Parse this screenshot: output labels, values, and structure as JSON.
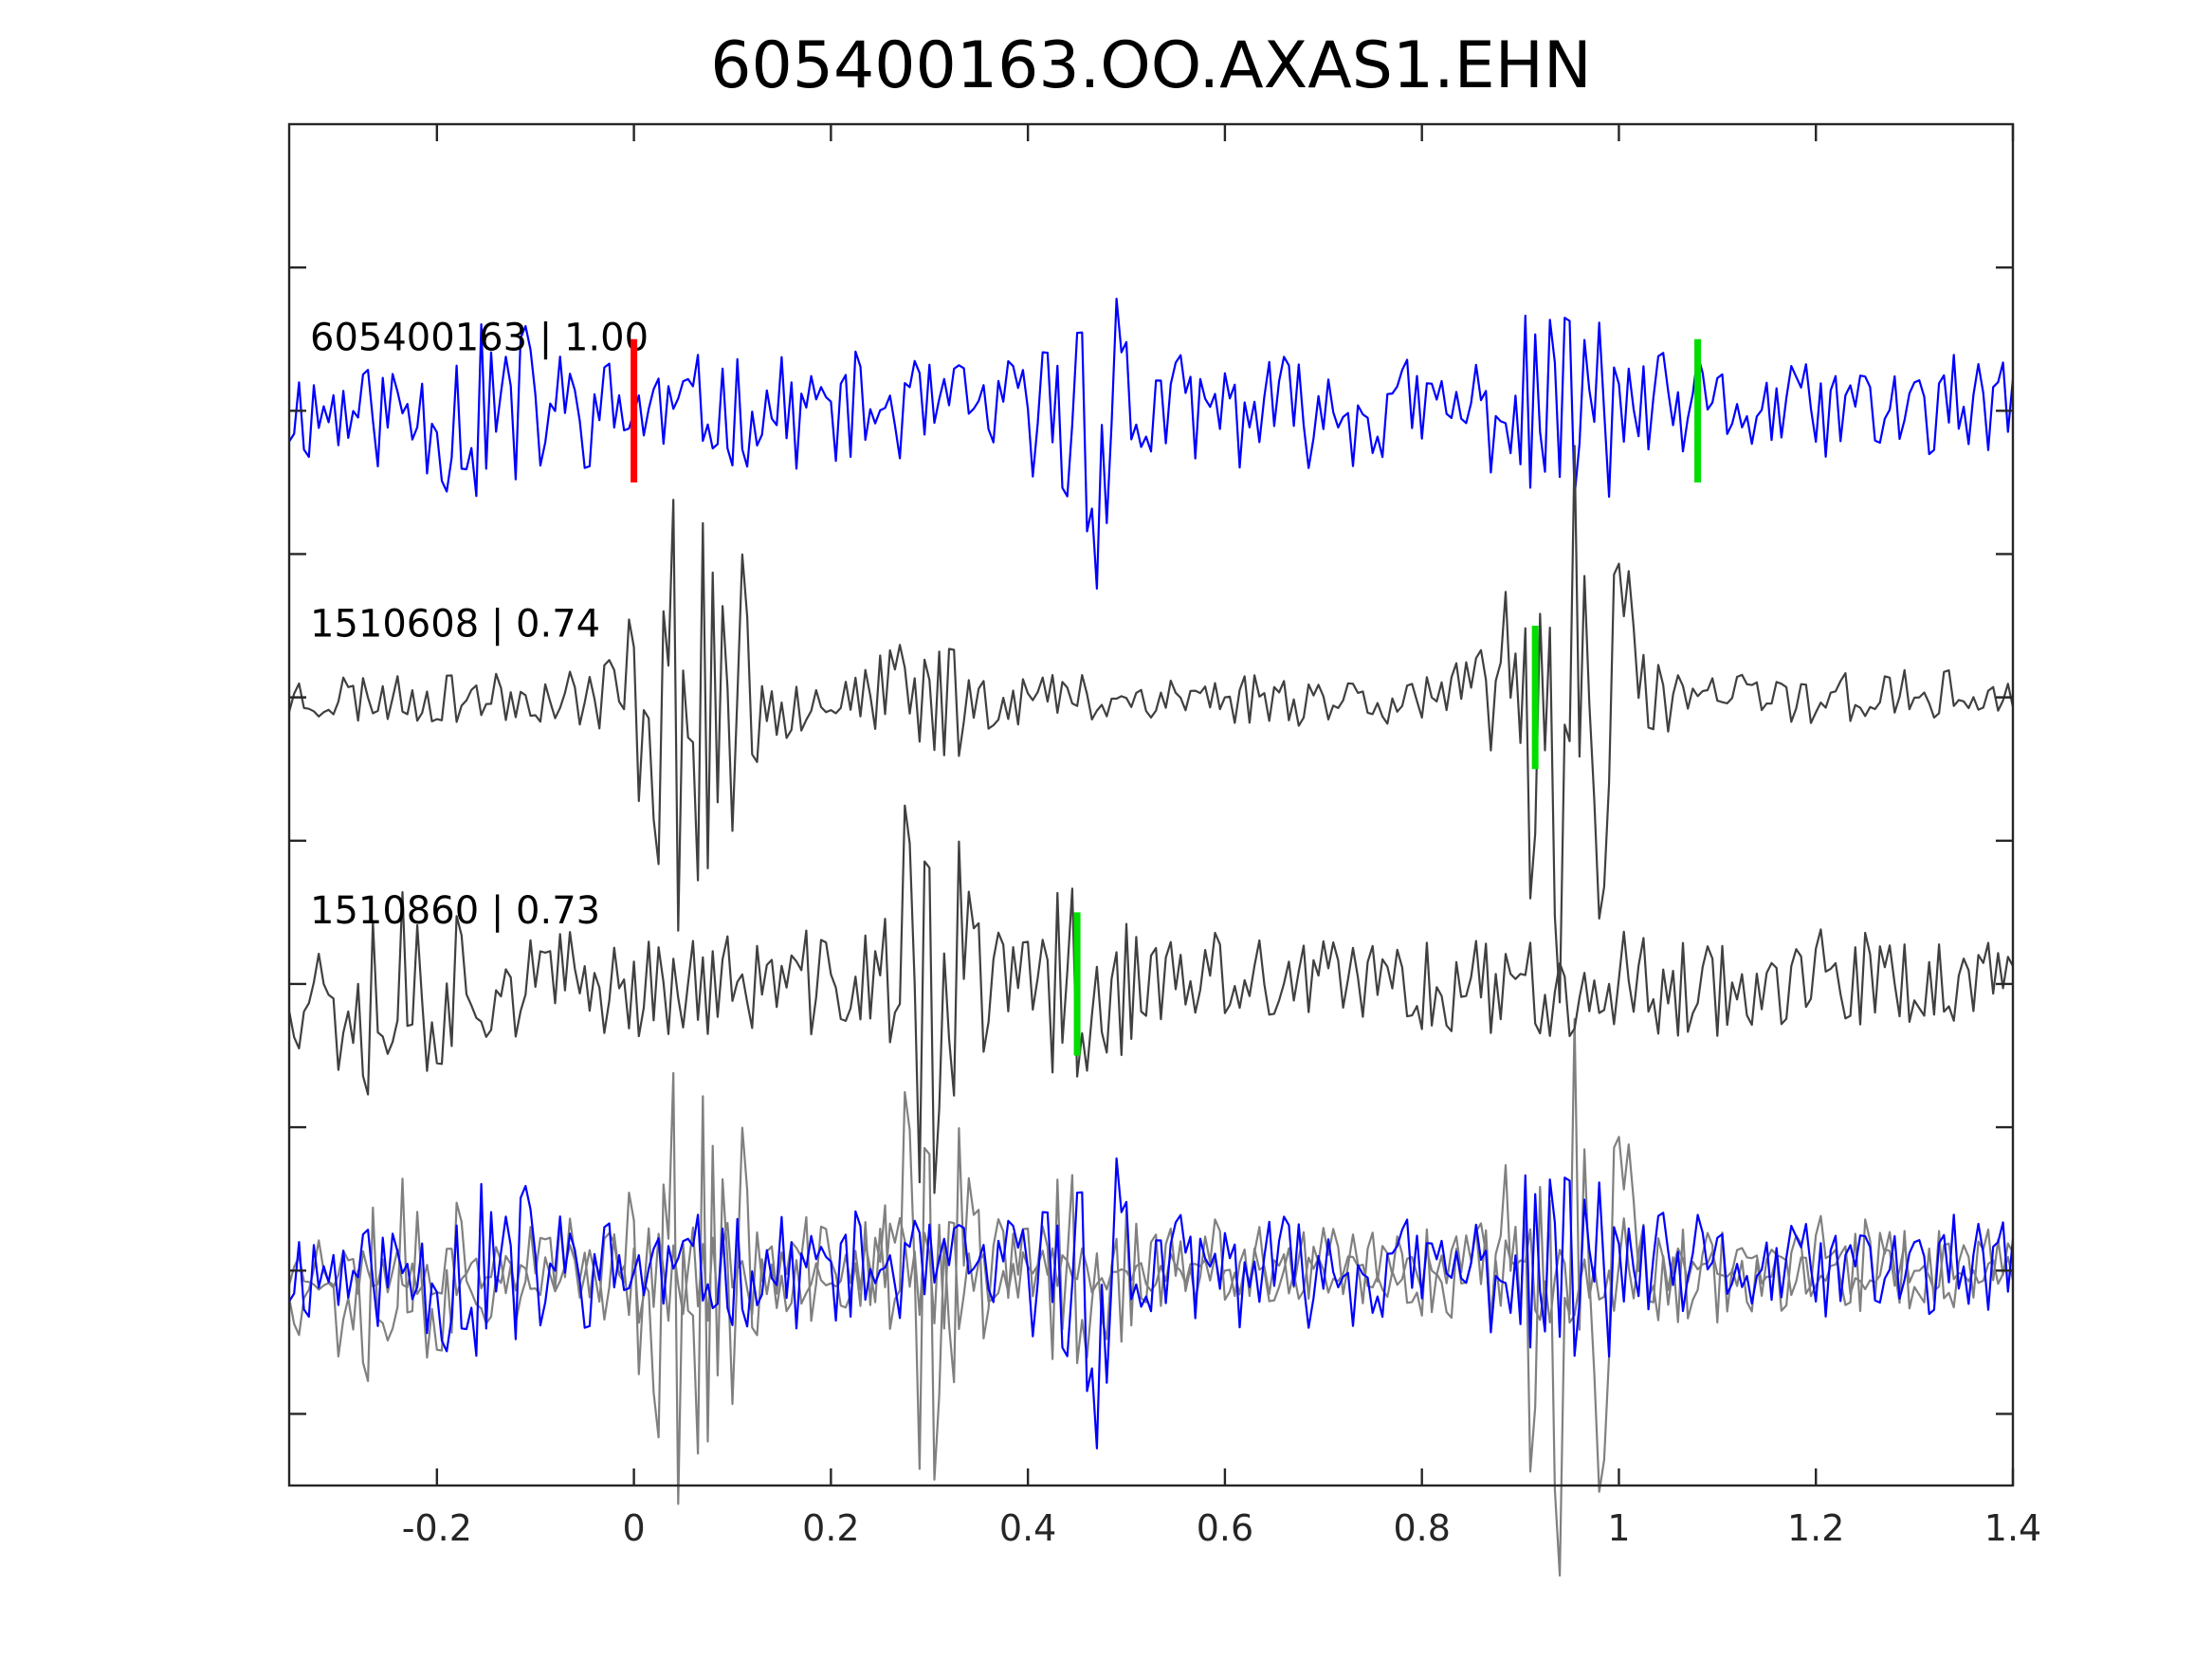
{
  "chart_data": {
    "type": "line",
    "title": "605400163.OO.AXAS1.EHN",
    "xlabel": "",
    "ylabel": "",
    "xlim": [
      -0.35,
      1.4
    ],
    "ylim": [
      -1.5,
      8.0
    ],
    "xticks": [
      -0.2,
      0,
      0.2,
      0.4,
      0.6,
      0.8,
      1,
      1.2,
      1.4
    ],
    "xtick_labels": [
      "-0.2",
      "0",
      "0.2",
      "0.4",
      "0.6",
      "0.8",
      "1",
      "1.2",
      "1.4"
    ],
    "yticks": [
      -1,
      0,
      1,
      2,
      3,
      4,
      5,
      6,
      7
    ],
    "grid": false,
    "colors": {
      "target": "#0000ff",
      "template": "#404040",
      "overlay_template": "#808080",
      "p_pick": "#ff0000",
      "s_pick": "#00dd00"
    },
    "series": [
      {
        "name": "605400163 | 1.00",
        "baseline": 6,
        "color": "#0000ff",
        "shift": 0,
        "seed": 11,
        "noise": 0.36,
        "bursts": [
          [
            0.47,
            0.9,
            0.04
          ],
          [
            0.95,
            0.5,
            0.05
          ],
          [
            -0.15,
            0.4,
            0.06
          ]
        ],
        "picks": [
          {
            "kind": "P",
            "t": 0.0,
            "color": "#ff0000"
          },
          {
            "kind": "S",
            "t": 1.08,
            "color": "#00dd00"
          }
        ]
      },
      {
        "name": "1510608 | 0.74",
        "baseline": 4,
        "color": "#404040",
        "shift": 0.0,
        "seed": 23,
        "noise": 0.18,
        "bursts": [
          [
            0.06,
            1.4,
            0.06
          ],
          [
            0.95,
            1.9,
            0.06
          ],
          [
            0.3,
            0.3,
            0.05
          ]
        ],
        "picks": [
          {
            "kind": "S",
            "t": 0.915,
            "color": "#00dd00"
          }
        ]
      },
      {
        "name": "1510860 | 0.73",
        "baseline": 2,
        "color": "#404040",
        "shift": 0.0,
        "seed": 37,
        "noise": 0.34,
        "bursts": [
          [
            0.3,
            1.4,
            0.04
          ],
          [
            -0.25,
            0.6,
            0.07
          ],
          [
            0.45,
            0.5,
            0.05
          ]
        ],
        "picks": [
          {
            "kind": "S",
            "t": 0.45,
            "color": "#00dd00"
          }
        ]
      }
    ],
    "overlay_baseline": 0,
    "sample_step": 0.005
  }
}
